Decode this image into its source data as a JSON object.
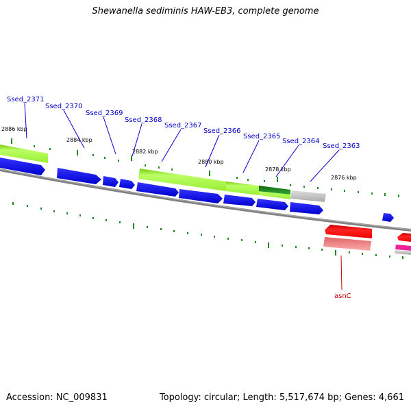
{
  "title": "Shewanella sediminis HAW-EB3, complete genome",
  "footer": {
    "accession": "Accession: NC_009831",
    "topology": "Topology: circular; Length: 5,517,674 bp; Genes: 4,661"
  },
  "ticks": {
    "t2886": "2886 kbp",
    "t2884": "2884 kbp",
    "t2882": "2882 kbp",
    "t2880": "2880 kbp",
    "t2878": "2878 kbp",
    "t2876": "2876 kbp"
  },
  "genes": {
    "g2371": "Ssed_2371",
    "g2370": "Ssed_2370",
    "g2369": "Ssed_2369",
    "g2368": "Ssed_2368",
    "g2367": "Ssed_2367",
    "g2366": "Ssed_2366",
    "g2365": "Ssed_2365",
    "g2364": "Ssed_2364",
    "g2363": "Ssed_2363",
    "asnC": "asnC"
  },
  "colors": {
    "cds_forward": "#0000ff",
    "cds_green": "#99ee33",
    "cds_dark_green": "#228b22",
    "trna": "#ff0000",
    "other": "#c0c0c0",
    "backbone": "#808080",
    "tick": "#228822"
  }
}
